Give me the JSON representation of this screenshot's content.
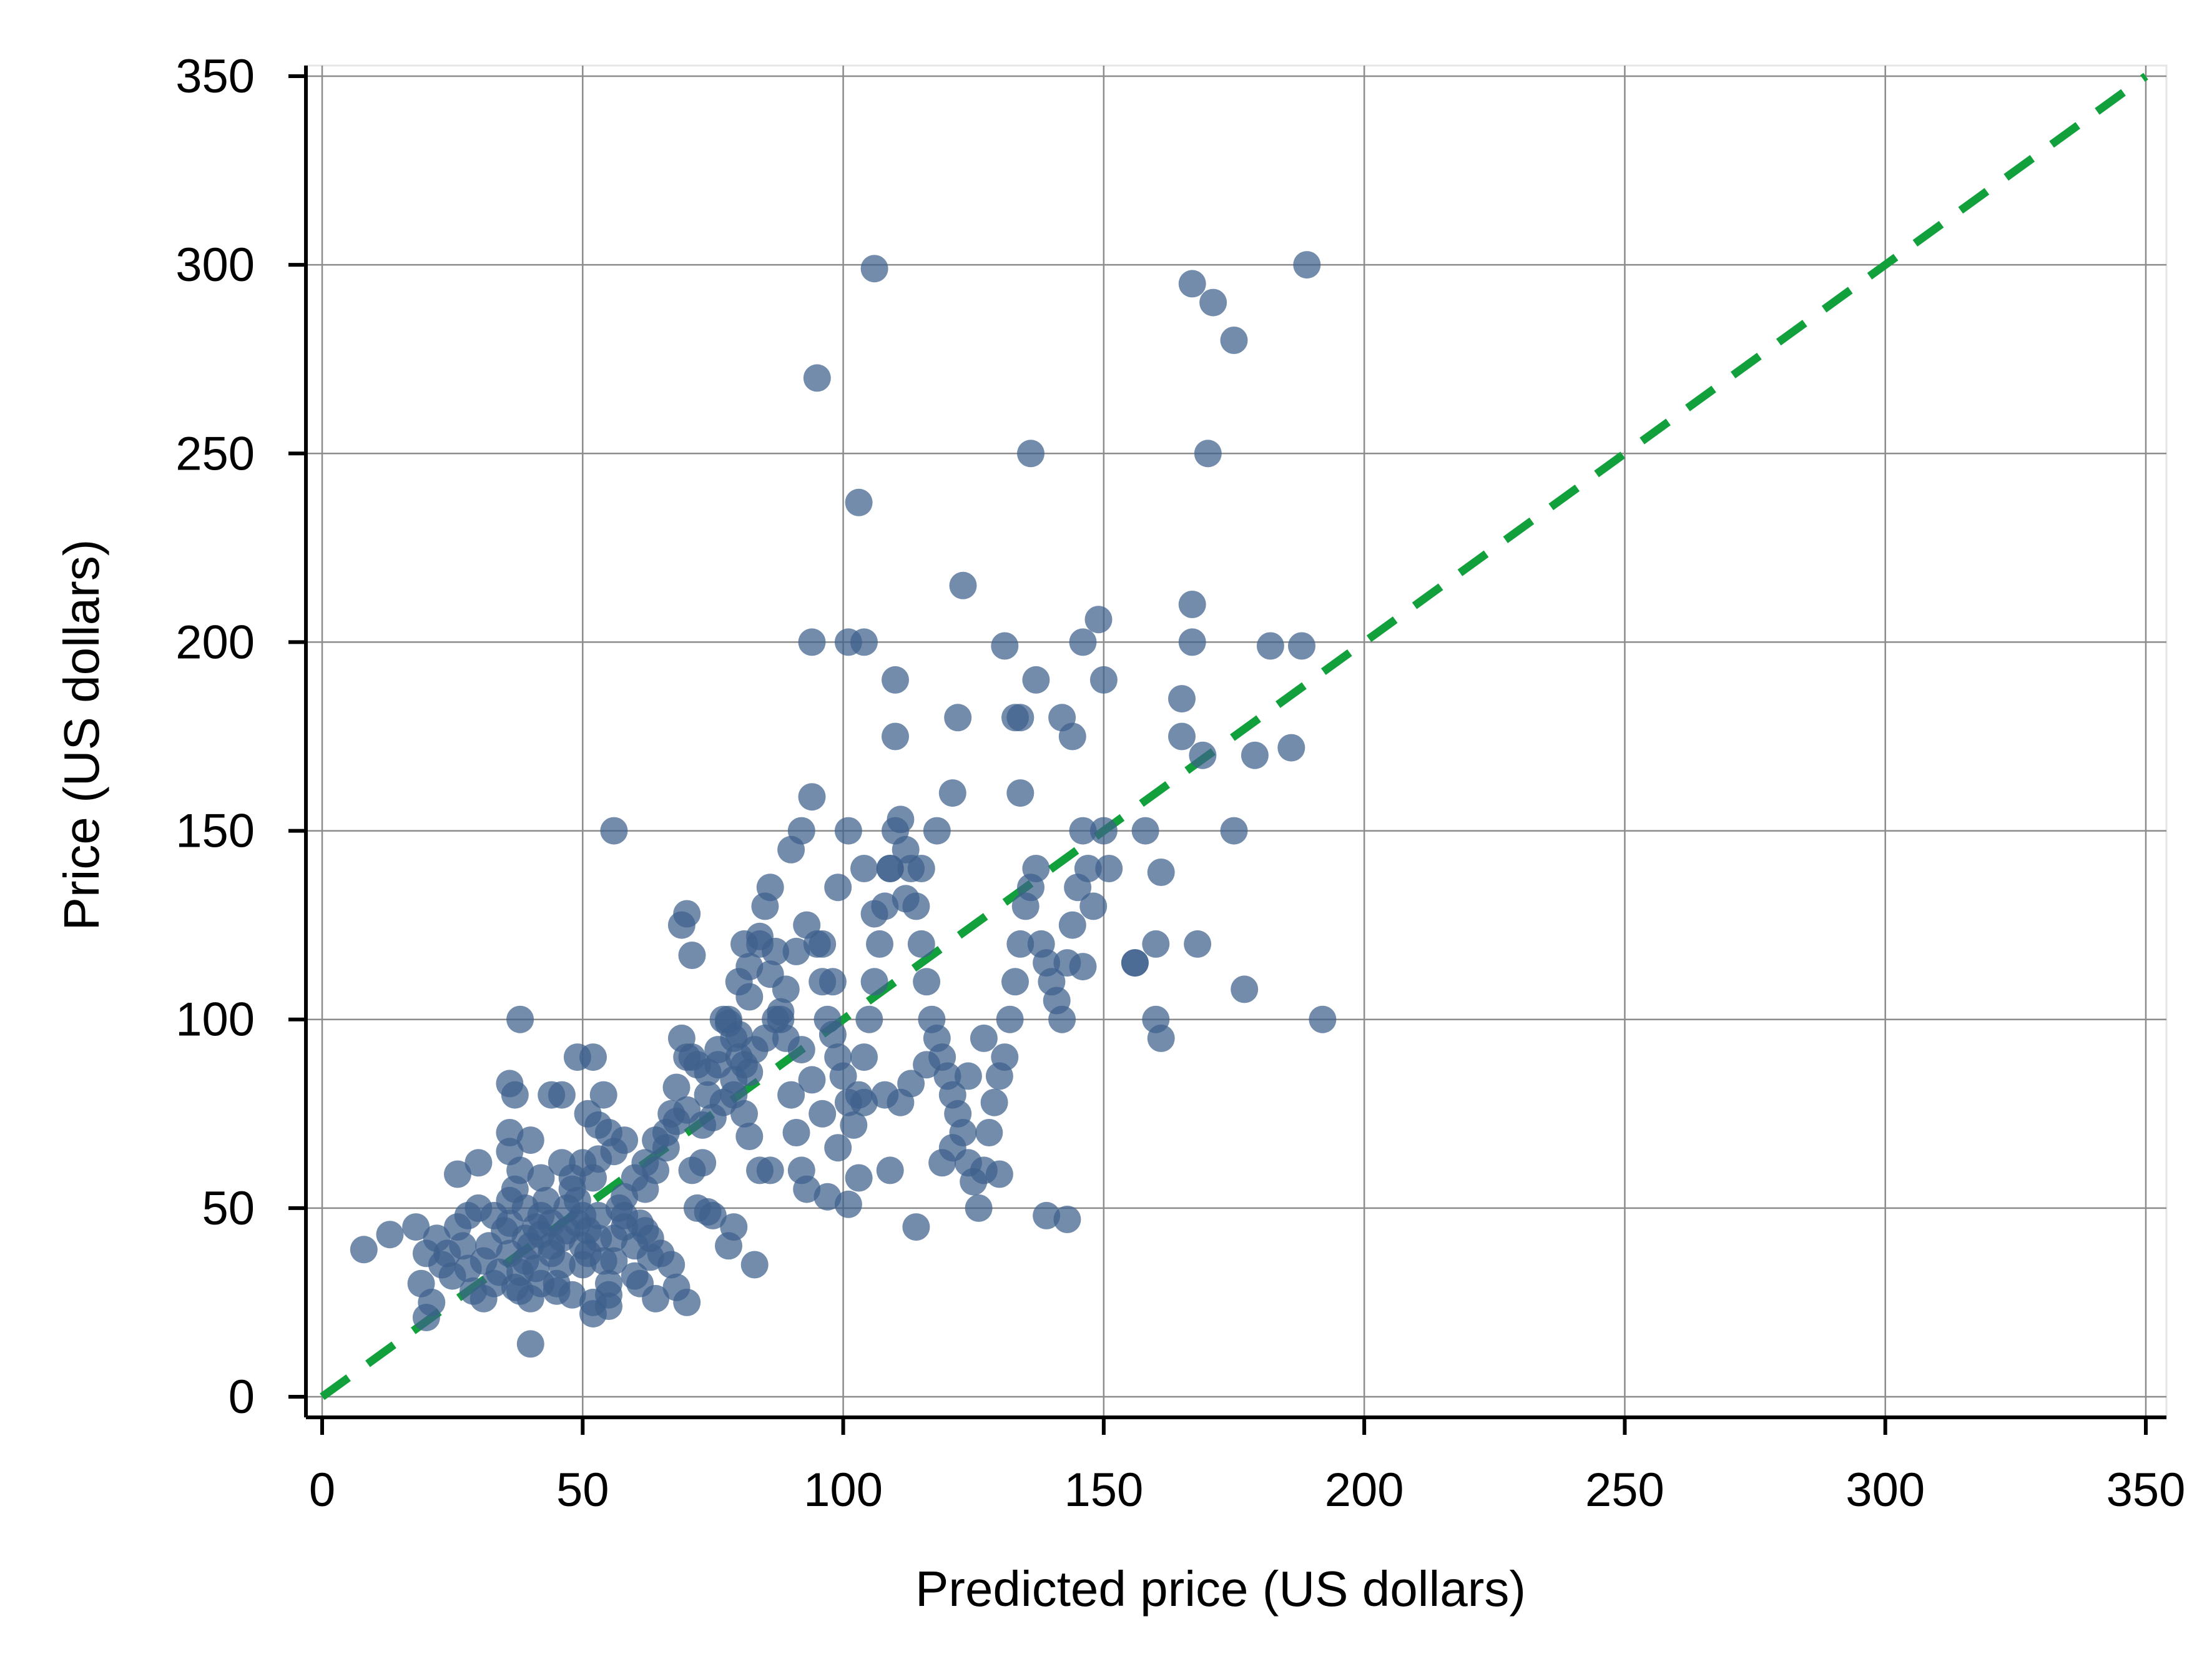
{
  "chart_data": {
    "type": "scatter",
    "xlabel": "Predicted price  (US dollars)",
    "ylabel": "Price (US dollars)",
    "xlim": [
      0,
      350
    ],
    "ylim": [
      0,
      350
    ],
    "xticks": [
      "0",
      "50",
      "100",
      "150",
      "200",
      "250",
      "300",
      "350"
    ],
    "yticks": [
      "0",
      "50",
      "100",
      "150",
      "200",
      "250",
      "300",
      "350"
    ],
    "grid": true,
    "legend": "none",
    "colors": {
      "points": "#3d5f8c",
      "reference_line": "#12a03c",
      "grid": "#8c8c8c",
      "axis": "#000000"
    },
    "reference_line": {
      "style": "dashed",
      "from": [
        0,
        0
      ],
      "to": [
        350,
        350
      ]
    },
    "points": [
      [
        8,
        39
      ],
      [
        13,
        43
      ],
      [
        18,
        45
      ],
      [
        20,
        38
      ],
      [
        22,
        42
      ],
      [
        19,
        30
      ],
      [
        21,
        25
      ],
      [
        20,
        21
      ],
      [
        25,
        32
      ],
      [
        23,
        35
      ],
      [
        26,
        59
      ],
      [
        28,
        48
      ],
      [
        30,
        50
      ],
      [
        30,
        62
      ],
      [
        32,
        40
      ],
      [
        33,
        30
      ],
      [
        31,
        26
      ],
      [
        35,
        44
      ],
      [
        36,
        52
      ],
      [
        37,
        55
      ],
      [
        38,
        33
      ],
      [
        38,
        28
      ],
      [
        39,
        36
      ],
      [
        40,
        40
      ],
      [
        41,
        45
      ],
      [
        42,
        48
      ],
      [
        43,
        52
      ],
      [
        44,
        38
      ],
      [
        45,
        30
      ],
      [
        46,
        42
      ],
      [
        47,
        50
      ],
      [
        48,
        55
      ],
      [
        49,
        46
      ],
      [
        50,
        40
      ],
      [
        50,
        35
      ],
      [
        51,
        44
      ],
      [
        52,
        58
      ],
      [
        53,
        48
      ],
      [
        54,
        36
      ],
      [
        55,
        30
      ],
      [
        56,
        42
      ],
      [
        57,
        50
      ],
      [
        58,
        45
      ],
      [
        60,
        40
      ],
      [
        62,
        44
      ],
      [
        65,
        38
      ],
      [
        64,
        26
      ],
      [
        60,
        32
      ],
      [
        55,
        27
      ],
      [
        52,
        25
      ],
      [
        48,
        27
      ],
      [
        45,
        28
      ],
      [
        42,
        30
      ],
      [
        40,
        26
      ],
      [
        37,
        29
      ],
      [
        34,
        33
      ],
      [
        31,
        36
      ],
      [
        28,
        34
      ],
      [
        27,
        40
      ],
      [
        24,
        38
      ],
      [
        26,
        45
      ],
      [
        29,
        28
      ],
      [
        33,
        48
      ],
      [
        36,
        38
      ],
      [
        39,
        50
      ],
      [
        41,
        34
      ],
      [
        44,
        46
      ],
      [
        46,
        35
      ],
      [
        49,
        52
      ],
      [
        51,
        38
      ],
      [
        53,
        42
      ],
      [
        56,
        36
      ],
      [
        58,
        48
      ],
      [
        61,
        46
      ],
      [
        63,
        42
      ],
      [
        44,
        40
      ],
      [
        47,
        44
      ],
      [
        50,
        48
      ],
      [
        42,
        43
      ],
      [
        39,
        42
      ],
      [
        36,
        46
      ],
      [
        38,
        60
      ],
      [
        42,
        58
      ],
      [
        40,
        68
      ],
      [
        36,
        65
      ],
      [
        36,
        70
      ],
      [
        37,
        80
      ],
      [
        36,
        83
      ],
      [
        38,
        100
      ],
      [
        44,
        80
      ],
      [
        46,
        80
      ],
      [
        49,
        90
      ],
      [
        52,
        90
      ],
      [
        51,
        75
      ],
      [
        53,
        72
      ],
      [
        54,
        80
      ],
      [
        55,
        70
      ],
      [
        56,
        65
      ],
      [
        58,
        68
      ],
      [
        53,
        63
      ],
      [
        50,
        62
      ],
      [
        48,
        58
      ],
      [
        46,
        62
      ],
      [
        40,
        14
      ],
      [
        52,
        22
      ],
      [
        55,
        24
      ],
      [
        61,
        30
      ],
      [
        63,
        37
      ],
      [
        67,
        35
      ],
      [
        68,
        29
      ],
      [
        70,
        25
      ],
      [
        72,
        50
      ],
      [
        74,
        49
      ],
      [
        75,
        48
      ],
      [
        78,
        40
      ],
      [
        79,
        45
      ],
      [
        83,
        35
      ],
      [
        62,
        55
      ],
      [
        64,
        60
      ],
      [
        66,
        70
      ],
      [
        68,
        73
      ],
      [
        67,
        75
      ],
      [
        70,
        90
      ],
      [
        69,
        95
      ],
      [
        71,
        90
      ],
      [
        73,
        72
      ],
      [
        74,
        80
      ],
      [
        76,
        88
      ],
      [
        77,
        100
      ],
      [
        78,
        100
      ],
      [
        79,
        95
      ],
      [
        80,
        90
      ],
      [
        82,
        86
      ],
      [
        80,
        110
      ],
      [
        81,
        120
      ],
      [
        82,
        114
      ],
      [
        84,
        120
      ],
      [
        85,
        130
      ],
      [
        86,
        135
      ],
      [
        87,
        118
      ],
      [
        88,
        100
      ],
      [
        89,
        95
      ],
      [
        90,
        80
      ],
      [
        91,
        70
      ],
      [
        92,
        60
      ],
      [
        93,
        55
      ],
      [
        86,
        60
      ],
      [
        84,
        60
      ],
      [
        82,
        69
      ],
      [
        81,
        75
      ],
      [
        79,
        80
      ],
      [
        77,
        78
      ],
      [
        75,
        74
      ],
      [
        73,
        62
      ],
      [
        71,
        60
      ],
      [
        70,
        128
      ],
      [
        69,
        125
      ],
      [
        71,
        117
      ],
      [
        90,
        145
      ],
      [
        92,
        150
      ],
      [
        94,
        159
      ],
      [
        95,
        120
      ],
      [
        96,
        110
      ],
      [
        97,
        100
      ],
      [
        98,
        96
      ],
      [
        99,
        90
      ],
      [
        100,
        85
      ],
      [
        101,
        78
      ],
      [
        102,
        72
      ],
      [
        103,
        80
      ],
      [
        104,
        90
      ],
      [
        105,
        100
      ],
      [
        106,
        110
      ],
      [
        107,
        120
      ],
      [
        108,
        130
      ],
      [
        109,
        140
      ],
      [
        110,
        150
      ],
      [
        111,
        153
      ],
      [
        112,
        145
      ],
      [
        113,
        140
      ],
      [
        114,
        130
      ],
      [
        115,
        120
      ],
      [
        116,
        110
      ],
      [
        117,
        100
      ],
      [
        118,
        95
      ],
      [
        119,
        90
      ],
      [
        120,
        85
      ],
      [
        121,
        80
      ],
      [
        122,
        75
      ],
      [
        123,
        70
      ],
      [
        124,
        62
      ],
      [
        125,
        57
      ],
      [
        126,
        50
      ],
      [
        127,
        60
      ],
      [
        128,
        70
      ],
      [
        129,
        78
      ],
      [
        130,
        85
      ],
      [
        131,
        90
      ],
      [
        132,
        100
      ],
      [
        133,
        110
      ],
      [
        134,
        120
      ],
      [
        135,
        130
      ],
      [
        136,
        135
      ],
      [
        137,
        140
      ],
      [
        138,
        120
      ],
      [
        139,
        115
      ],
      [
        140,
        110
      ],
      [
        141,
        105
      ],
      [
        142,
        100
      ],
      [
        143,
        115
      ],
      [
        144,
        125
      ],
      [
        145,
        135
      ],
      [
        146,
        150
      ],
      [
        147,
        140
      ],
      [
        148,
        130
      ],
      [
        94,
        200
      ],
      [
        101,
        200
      ],
      [
        104,
        200
      ],
      [
        103,
        237
      ],
      [
        95,
        270
      ],
      [
        106,
        299
      ],
      [
        110,
        190
      ],
      [
        110,
        175
      ],
      [
        122,
        180
      ],
      [
        123,
        215
      ],
      [
        131,
        199
      ],
      [
        133,
        180
      ],
      [
        134,
        180
      ],
      [
        134,
        160
      ],
      [
        137,
        190
      ],
      [
        142,
        180
      ],
      [
        144,
        175
      ],
      [
        146,
        200
      ],
      [
        149,
        206
      ],
      [
        150,
        190
      ],
      [
        150,
        150
      ],
      [
        151,
        140
      ],
      [
        156,
        115
      ],
      [
        158,
        150
      ],
      [
        160,
        120
      ],
      [
        161,
        139
      ],
      [
        165,
        185
      ],
      [
        165,
        175
      ],
      [
        167,
        200
      ],
      [
        167,
        210
      ],
      [
        168,
        120
      ],
      [
        169,
        170
      ],
      [
        170,
        250
      ],
      [
        175,
        150
      ],
      [
        177,
        108
      ],
      [
        179,
        170
      ],
      [
        182,
        199
      ],
      [
        186,
        172
      ],
      [
        188,
        199
      ],
      [
        189,
        300
      ],
      [
        192,
        100
      ],
      [
        160,
        100
      ],
      [
        161,
        95
      ],
      [
        167,
        295
      ],
      [
        171,
        290
      ],
      [
        175,
        280
      ],
      [
        136,
        250
      ],
      [
        146,
        114
      ],
      [
        156,
        115
      ],
      [
        139,
        48
      ],
      [
        143,
        47
      ],
      [
        121,
        160
      ],
      [
        118,
        150
      ],
      [
        115,
        140
      ],
      [
        112,
        132
      ],
      [
        109,
        140
      ],
      [
        106,
        128
      ],
      [
        104,
        140
      ],
      [
        101,
        150
      ],
      [
        99,
        135
      ],
      [
        98,
        110
      ],
      [
        96,
        120
      ],
      [
        93,
        125
      ],
      [
        91,
        118
      ],
      [
        89,
        108
      ],
      [
        87,
        100
      ],
      [
        85,
        95
      ],
      [
        83,
        92
      ],
      [
        81,
        88
      ],
      [
        79,
        84
      ],
      [
        97,
        53
      ],
      [
        101,
        51
      ],
      [
        103,
        58
      ],
      [
        109,
        60
      ],
      [
        113,
        83
      ],
      [
        116,
        88
      ],
      [
        121,
        66
      ],
      [
        124,
        85
      ],
      [
        127,
        95
      ],
      [
        130,
        59
      ],
      [
        119,
        62
      ],
      [
        114,
        45
      ],
      [
        108,
        80
      ],
      [
        111,
        78
      ],
      [
        104,
        78
      ],
      [
        99,
        66
      ],
      [
        96,
        75
      ],
      [
        94,
        84
      ],
      [
        92,
        92
      ],
      [
        88,
        102
      ],
      [
        86,
        112
      ],
      [
        84,
        122
      ],
      [
        82,
        106
      ],
      [
        80,
        96
      ],
      [
        78,
        99
      ],
      [
        76,
        92
      ],
      [
        74,
        86
      ],
      [
        72,
        88
      ],
      [
        70,
        76
      ],
      [
        68,
        82
      ],
      [
        66,
        66
      ],
      [
        64,
        68
      ],
      [
        62,
        62
      ],
      [
        60,
        58
      ],
      [
        58,
        53
      ],
      [
        56,
        150
      ]
    ]
  }
}
